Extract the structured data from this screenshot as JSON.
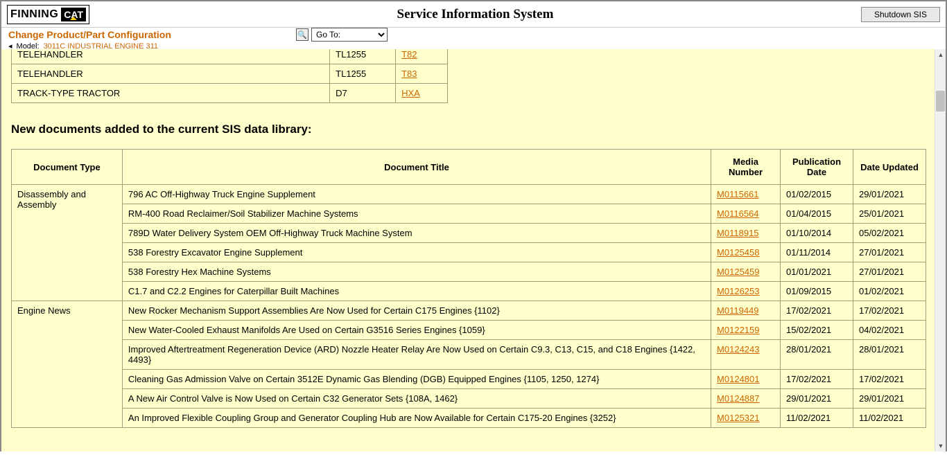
{
  "header": {
    "logo_text_1": "FINNING",
    "logo_text_2": "CAT",
    "title": "Service Information System",
    "shutdown_label": "Shutdown SIS"
  },
  "subheader": {
    "change_config": "Change Product/Part Configuration",
    "model_label": "Model:",
    "model_value": "3011C INDUSTRIAL ENGINE 311",
    "goto_label": "Go To:"
  },
  "products": [
    {
      "name": "TELEHANDLER",
      "model": "TL1255",
      "code": "T82",
      "partial": true
    },
    {
      "name": "TELEHANDLER",
      "model": "TL1255",
      "code": "T83"
    },
    {
      "name": "TRACK-TYPE TRACTOR",
      "model": "D7",
      "code": "HXA"
    }
  ],
  "section_heading": "New documents added to the current SIS data library:",
  "doc_headers": {
    "type": "Document Type",
    "title": "Document Title",
    "media": "Media Number",
    "pub": "Publication Date",
    "updated": "Date Updated"
  },
  "doc_groups": [
    {
      "type": "Disassembly and Assembly",
      "rows": [
        {
          "title": "796 AC Off-Highway Truck Engine Supplement",
          "media": "M0115661",
          "pub": "01/02/2015",
          "updated": "29/01/2021"
        },
        {
          "title": "RM-400 Road Reclaimer/Soil Stabilizer Machine Systems",
          "media": "M0116564",
          "pub": "01/04/2015",
          "updated": "25/01/2021"
        },
        {
          "title": "789D Water Delivery System OEM Off-Highway Truck Machine System",
          "media": "M0118915",
          "pub": "01/10/2014",
          "updated": "05/02/2021"
        },
        {
          "title": "538 Forestry Excavator Engine Supplement",
          "media": "M0125458",
          "pub": "01/11/2014",
          "updated": "27/01/2021"
        },
        {
          "title": "538 Forestry Hex Machine Systems",
          "media": "M0125459",
          "pub": "01/01/2021",
          "updated": "27/01/2021"
        },
        {
          "title": "C1.7 and C2.2 Engines for Caterpillar Built Machines",
          "media": "M0126253",
          "pub": "01/09/2015",
          "updated": "01/02/2021"
        }
      ]
    },
    {
      "type": "Engine News",
      "rows": [
        {
          "title": "New Rocker Mechanism Support Assemblies Are Now Used for Certain C175 Engines {1102}",
          "media": "M0119449",
          "pub": "17/02/2021",
          "updated": "17/02/2021"
        },
        {
          "title": "New Water-Cooled Exhaust Manifolds Are Used on Certain G3516 Series Engines {1059}",
          "media": "M0122159",
          "pub": "15/02/2021",
          "updated": "04/02/2021"
        },
        {
          "title": "Improved Aftertreatment Regeneration Device (ARD) Nozzle Heater Relay Are Now Used on Certain C9.3, C13, C15, and C18 Engines {1422, 4493}",
          "media": "M0124243",
          "pub": "28/01/2021",
          "updated": "28/01/2021"
        },
        {
          "title": "Cleaning Gas Admission Valve on Certain 3512E Dynamic Gas Blending (DGB) Equipped Engines {1105, 1250, 1274}",
          "media": "M0124801",
          "pub": "17/02/2021",
          "updated": "17/02/2021"
        },
        {
          "title": "A New Air Control Valve is Now Used on Certain C32 Generator Sets {108A, 1462}",
          "media": "M0124887",
          "pub": "29/01/2021",
          "updated": "29/01/2021"
        },
        {
          "title": "An Improved Flexible Coupling Group and Generator Coupling Hub are Now Available for Certain C175-20 Engines {3252}",
          "media": "M0125321",
          "pub": "11/02/2021",
          "updated": "11/02/2021"
        }
      ]
    }
  ],
  "colors": {
    "content_bg": "#FFFFCC",
    "link": "#cc6600",
    "border": "#9e9e7a"
  }
}
